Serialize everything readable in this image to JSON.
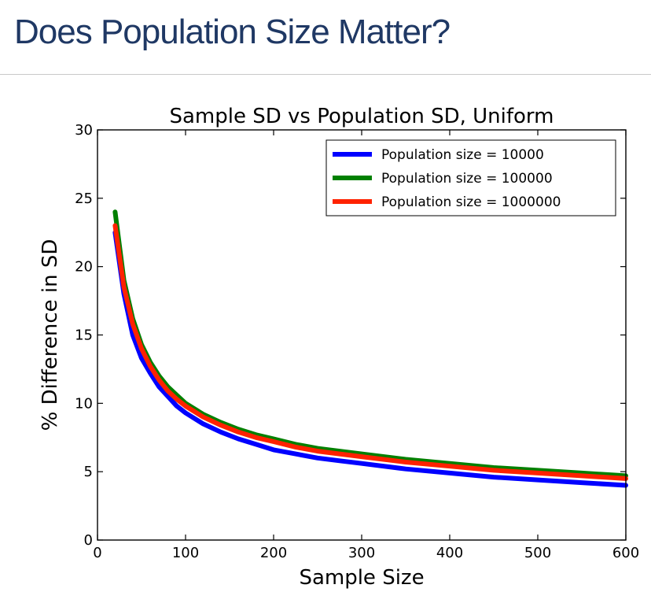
{
  "slide": {
    "title": "Does Population Size Matter?"
  },
  "chart_data": {
    "type": "line",
    "title": "Sample SD vs Population SD, Uniform",
    "xlabel": "Sample Size",
    "ylabel": "% Difference in SD",
    "xlim": [
      0,
      600
    ],
    "ylim": [
      0,
      30
    ],
    "xticks": [
      0,
      100,
      200,
      300,
      400,
      500,
      600
    ],
    "yticks": [
      0,
      5,
      10,
      15,
      20,
      25,
      30
    ],
    "grid": false,
    "legend_position": "top-right",
    "series": [
      {
        "name": "Population size = 10000",
        "color": "#0000ff",
        "x": [
          20,
          30,
          40,
          50,
          60,
          70,
          80,
          90,
          100,
          120,
          140,
          160,
          180,
          200,
          225,
          250,
          275,
          300,
          350,
          400,
          450,
          500,
          550,
          600
        ],
        "y": [
          22.5,
          18.0,
          15.0,
          13.3,
          12.2,
          11.2,
          10.5,
          9.8,
          9.3,
          8.5,
          7.9,
          7.4,
          7.0,
          6.6,
          6.3,
          6.0,
          5.8,
          5.6,
          5.2,
          4.9,
          4.6,
          4.4,
          4.2,
          4.0
        ]
      },
      {
        "name": "Population size = 100000",
        "color": "#008000",
        "x": [
          20,
          30,
          40,
          50,
          60,
          70,
          80,
          90,
          100,
          120,
          140,
          160,
          180,
          200,
          225,
          250,
          275,
          300,
          350,
          400,
          450,
          500,
          550,
          600
        ],
        "y": [
          24.0,
          19.0,
          16.2,
          14.3,
          13.0,
          12.0,
          11.2,
          10.6,
          10.0,
          9.2,
          8.6,
          8.1,
          7.7,
          7.4,
          7.0,
          6.7,
          6.5,
          6.3,
          5.9,
          5.6,
          5.3,
          5.1,
          4.9,
          4.7
        ]
      },
      {
        "name": "Population size = 1000000",
        "color": "#ff2200",
        "x": [
          20,
          30,
          40,
          50,
          60,
          70,
          80,
          90,
          100,
          120,
          140,
          160,
          180,
          200,
          225,
          250,
          275,
          300,
          350,
          400,
          450,
          500,
          550,
          600
        ],
        "y": [
          23.0,
          18.5,
          15.8,
          14.0,
          12.7,
          11.7,
          10.9,
          10.3,
          9.8,
          9.0,
          8.4,
          7.9,
          7.5,
          7.2,
          6.8,
          6.5,
          6.3,
          6.1,
          5.7,
          5.4,
          5.1,
          4.9,
          4.7,
          4.5
        ]
      }
    ]
  }
}
